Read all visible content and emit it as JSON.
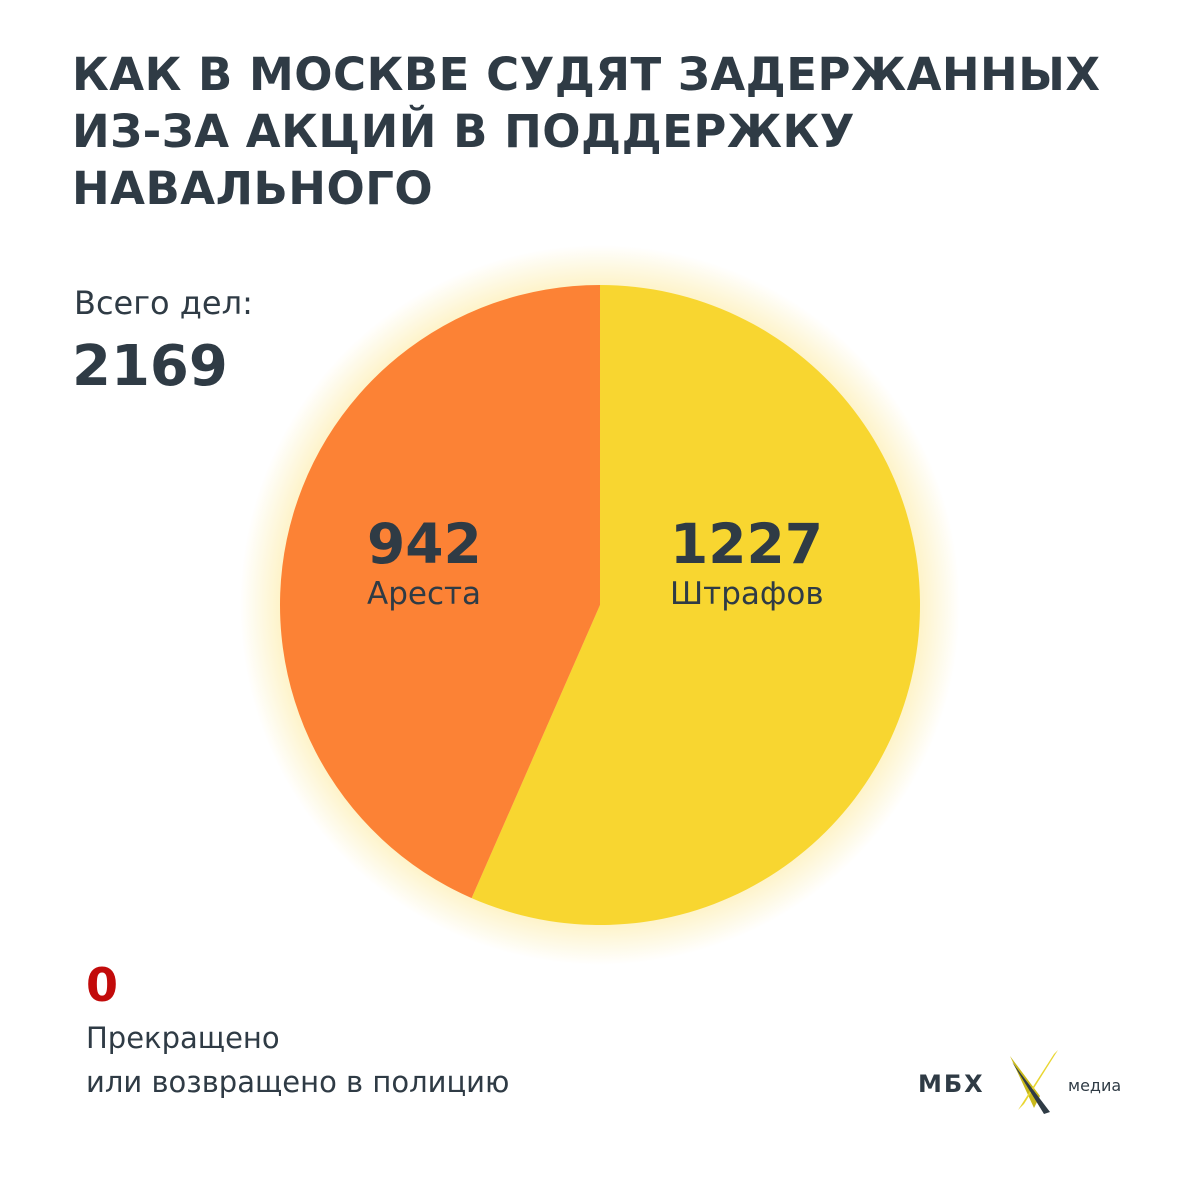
{
  "title_lines": [
    "КАК В МОСКВЕ СУДЯТ ЗАДЕРЖАННЫХ",
    "ИЗ-ЗА АКЦИЙ В ПОДДЕРЖКУ",
    "НАВАЛЬНОГО"
  ],
  "total": {
    "label": "Всего дел:",
    "value": "2169"
  },
  "chart_data": {
    "type": "pie",
    "title": "КАК В МОСКВЕ СУДЯТ ЗАДЕРЖАННЫХ ИЗ-ЗА АКЦИЙ В ПОДДЕРЖКУ НАВАЛЬНОГО",
    "slices": [
      {
        "label": "Штрафов",
        "value": 1227,
        "color": "#f8d630"
      },
      {
        "label": "Ареста",
        "value": 942,
        "color": "#fc8235"
      }
    ],
    "start": "top",
    "direction": "clockwise"
  },
  "terminated": {
    "value": "0",
    "label_lines": [
      "Прекращено",
      "или возвращено в полицию"
    ],
    "color": "#c20b0b"
  },
  "logo": {
    "left": "МБХ",
    "right": "медиа"
  }
}
